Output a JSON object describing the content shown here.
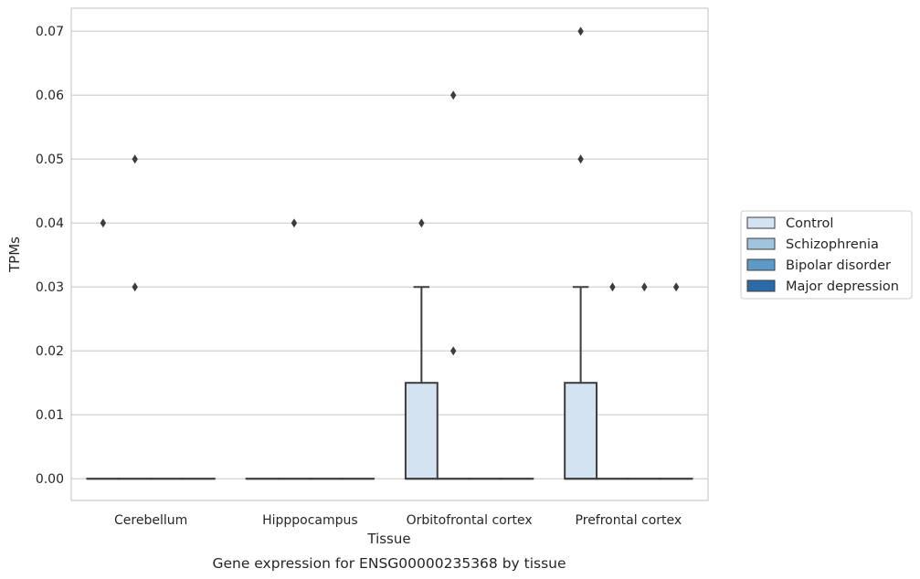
{
  "chart_data": {
    "type": "box",
    "title": "",
    "caption": "Gene expression for ENSG00000235368 by tissue",
    "xlabel": "Tissue",
    "ylabel": "TPMs",
    "ylim": [
      -0.0034,
      0.0736
    ],
    "yticks": [
      0.0,
      0.01,
      0.02,
      0.03,
      0.04,
      0.05,
      0.06,
      0.07
    ],
    "ytick_labels": [
      "0.00",
      "0.01",
      "0.02",
      "0.03",
      "0.04",
      "0.05",
      "0.06",
      "0.07"
    ],
    "grid": true,
    "legend_position": "right",
    "categories": [
      "Cerebellum",
      "Hipppocampus",
      "Orbitofrontal cortex",
      "Prefrontal cortex"
    ],
    "series": [
      {
        "name": "Control",
        "color": "#d3e3f1",
        "boxes": [
          {
            "q1": 0,
            "median": 0,
            "q3": 0,
            "whisker_low": 0,
            "whisker_high": 0,
            "outliers": [
              0.04
            ]
          },
          {
            "q1": 0,
            "median": 0,
            "q3": 0,
            "whisker_low": 0,
            "whisker_high": 0,
            "outliers": []
          },
          {
            "q1": 0,
            "median": 0,
            "q3": 0.015,
            "whisker_low": 0,
            "whisker_high": 0.03,
            "outliers": [
              0.04
            ]
          },
          {
            "q1": 0,
            "median": 0,
            "q3": 0.015,
            "whisker_low": 0,
            "whisker_high": 0.03,
            "outliers": [
              0.05,
              0.07
            ]
          }
        ]
      },
      {
        "name": "Schizophrenia",
        "color": "#9fc4dc",
        "boxes": [
          {
            "q1": 0,
            "median": 0,
            "q3": 0,
            "whisker_low": 0,
            "whisker_high": 0,
            "outliers": [
              0.03,
              0.05
            ]
          },
          {
            "q1": 0,
            "median": 0,
            "q3": 0,
            "whisker_low": 0,
            "whisker_high": 0,
            "outliers": [
              0.04
            ]
          },
          {
            "q1": 0,
            "median": 0,
            "q3": 0,
            "whisker_low": 0,
            "whisker_high": 0,
            "outliers": [
              0.02,
              0.06
            ]
          },
          {
            "q1": 0,
            "median": 0,
            "q3": 0,
            "whisker_low": 0,
            "whisker_high": 0,
            "outliers": [
              0.03
            ]
          }
        ]
      },
      {
        "name": "Bipolar disorder",
        "color": "#5c9ac7",
        "boxes": [
          {
            "q1": 0,
            "median": 0,
            "q3": 0,
            "whisker_low": 0,
            "whisker_high": 0,
            "outliers": []
          },
          {
            "q1": 0,
            "median": 0,
            "q3": 0,
            "whisker_low": 0,
            "whisker_high": 0,
            "outliers": []
          },
          {
            "q1": 0,
            "median": 0,
            "q3": 0,
            "whisker_low": 0,
            "whisker_high": 0,
            "outliers": []
          },
          {
            "q1": 0,
            "median": 0,
            "q3": 0,
            "whisker_low": 0,
            "whisker_high": 0,
            "outliers": [
              0.03
            ]
          }
        ]
      },
      {
        "name": "Major depression",
        "color": "#2a6aa8",
        "boxes": [
          {
            "q1": 0,
            "median": 0,
            "q3": 0,
            "whisker_low": 0,
            "whisker_high": 0,
            "outliers": []
          },
          {
            "q1": 0,
            "median": 0,
            "q3": 0,
            "whisker_low": 0,
            "whisker_high": 0,
            "outliers": []
          },
          {
            "q1": 0,
            "median": 0,
            "q3": 0,
            "whisker_low": 0,
            "whisker_high": 0,
            "outliers": []
          },
          {
            "q1": 0,
            "median": 0,
            "q3": 0,
            "whisker_low": 0,
            "whisker_high": 0,
            "outliers": [
              0.03
            ]
          }
        ]
      }
    ]
  }
}
